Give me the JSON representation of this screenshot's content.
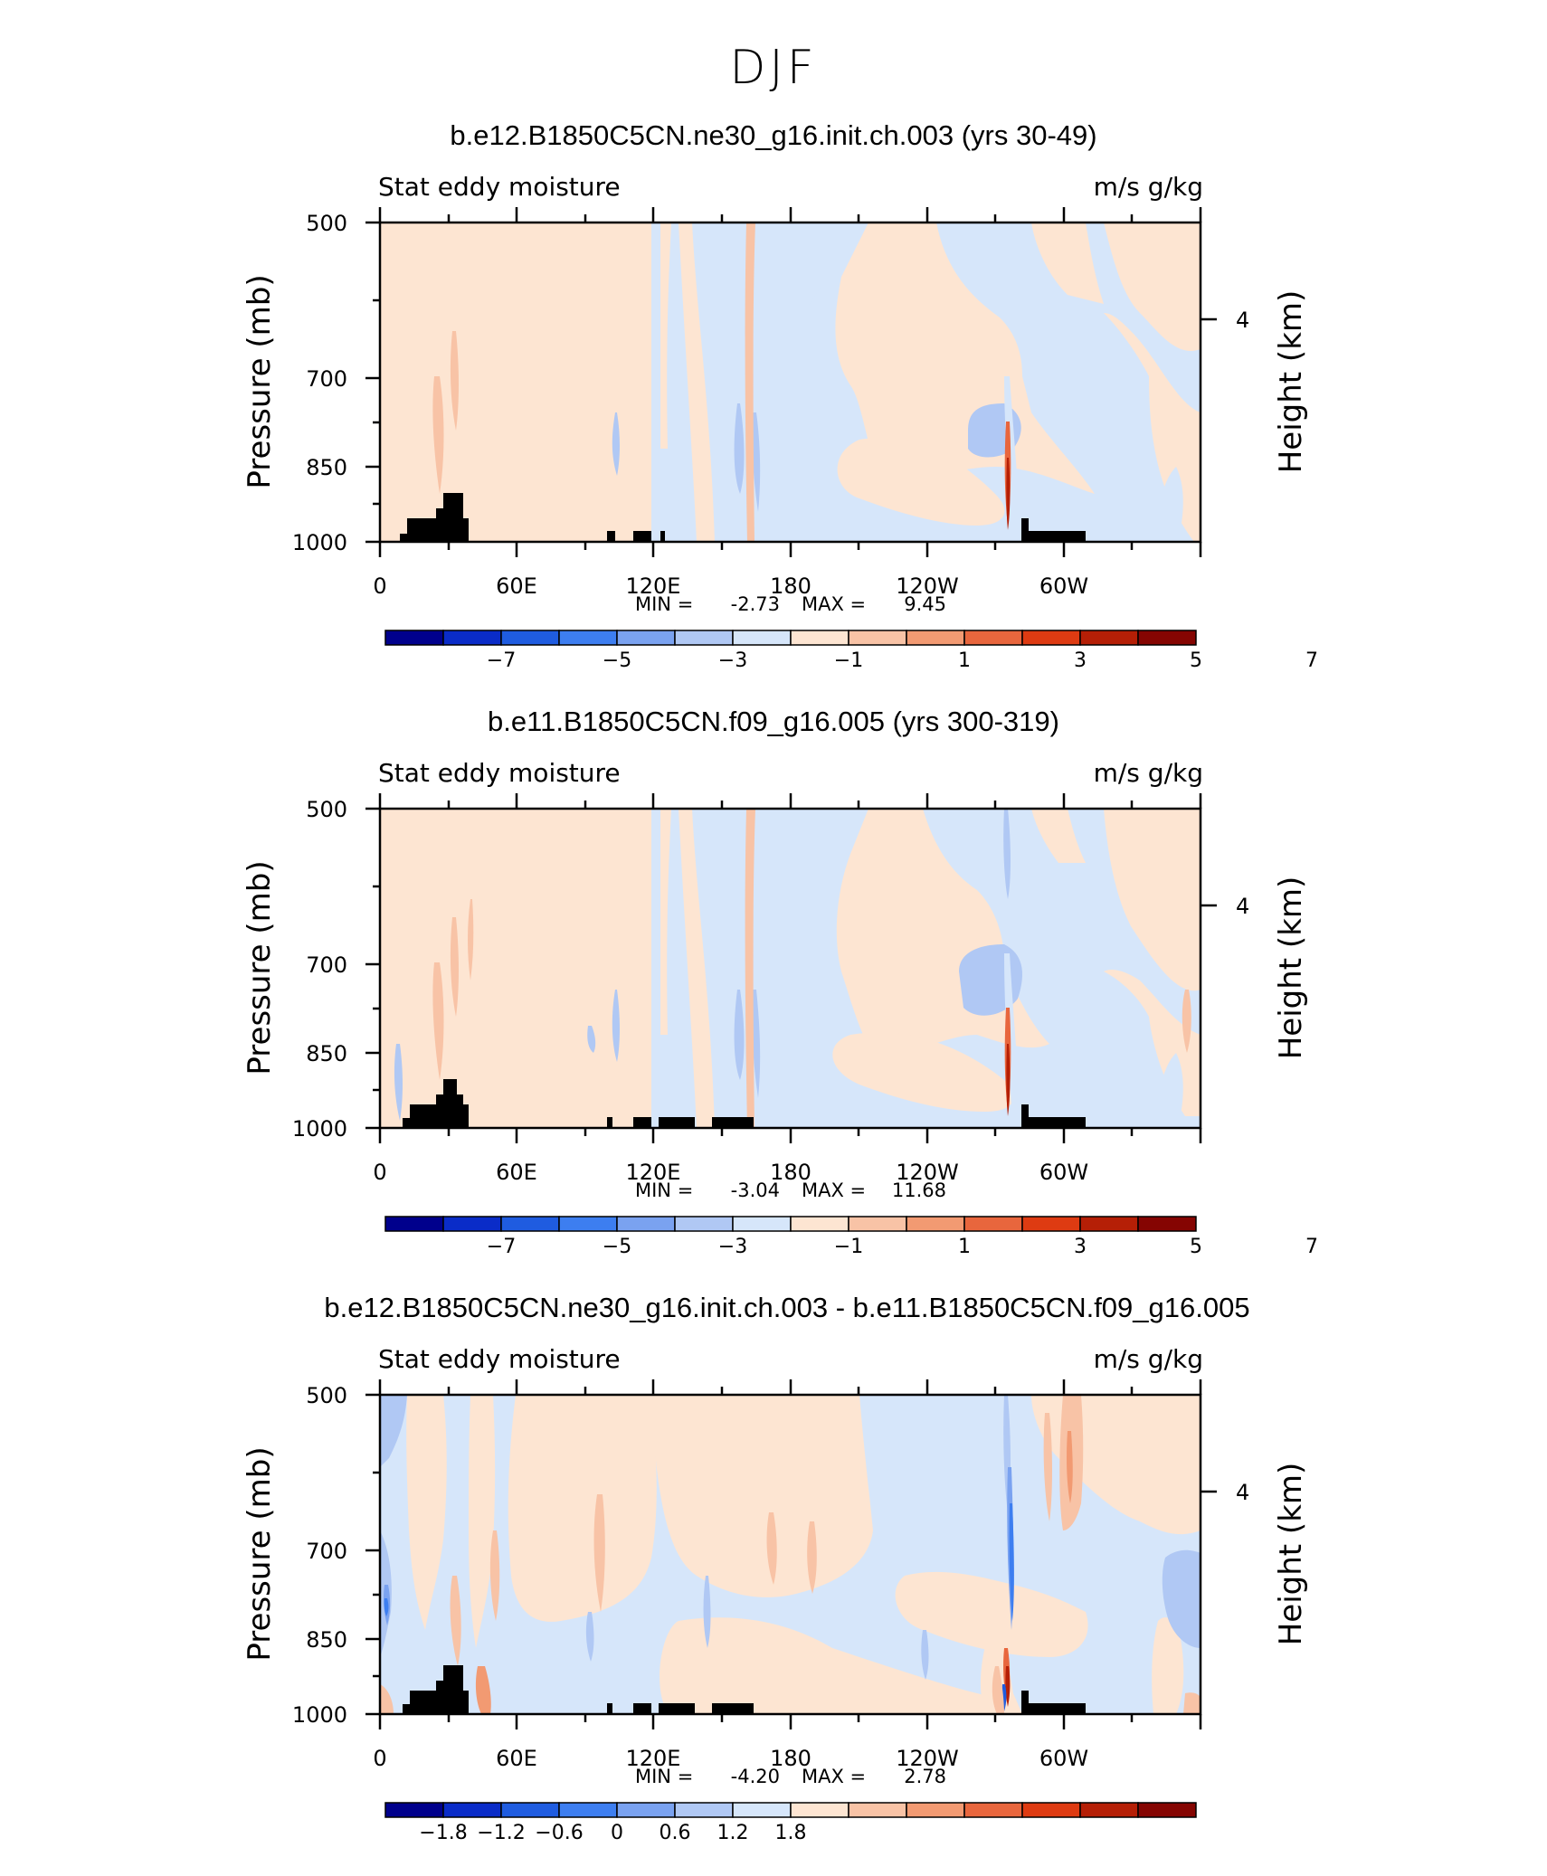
{
  "figure_title": "DJF",
  "chart_data": [
    {
      "type": "heatmap",
      "title": "b.e12.B1850C5CN.ne30_g16.init.ch.003 (yrs 30-49)",
      "left_label": "Stat eddy moisture",
      "right_label": "m/s g/kg",
      "ylabel": "Pressure (mb)",
      "y2label": "Height (km)",
      "x_ticks": [
        "0",
        "60E",
        "120E",
        "180",
        "120W",
        "60W"
      ],
      "y_ticks": [
        "500",
        "700",
        "850",
        "1000"
      ],
      "y2_ticks": [
        "4"
      ],
      "stats": {
        "min_label": "MIN =",
        "min_value": "-2.73",
        "max_label": "MAX =",
        "max_value": "9.45"
      },
      "colorbar_labels": [
        "-7",
        "-5",
        "-3",
        "-1",
        "1",
        "3",
        "5",
        "7"
      ],
      "topography": "profile1"
    },
    {
      "type": "heatmap",
      "title": "b.e11.B1850C5CN.f09_g16.005 (yrs 300-319)",
      "left_label": "Stat eddy moisture",
      "right_label": "m/s g/kg",
      "ylabel": "Pressure (mb)",
      "y2label": "Height (km)",
      "x_ticks": [
        "0",
        "60E",
        "120E",
        "180",
        "120W",
        "60W"
      ],
      "y_ticks": [
        "500",
        "700",
        "850",
        "1000"
      ],
      "y2_ticks": [
        "4"
      ],
      "stats": {
        "min_label": "MIN =",
        "min_value": "-3.04",
        "max_label": "MAX =",
        "max_value": "11.68"
      },
      "colorbar_labels": [
        "-7",
        "-5",
        "-3",
        "-1",
        "1",
        "3",
        "5",
        "7"
      ],
      "topography": "profile2"
    },
    {
      "type": "heatmap",
      "title": "b.e12.B1850C5CN.ne30_g16.init.ch.003 - b.e11.B1850C5CN.f09_g16.005",
      "left_label": "Stat eddy moisture",
      "right_label": "m/s g/kg",
      "ylabel": "Pressure (mb)",
      "y2label": "Height (km)",
      "x_ticks": [
        "0",
        "60E",
        "120E",
        "180",
        "120W",
        "60W"
      ],
      "y_ticks": [
        "500",
        "700",
        "850",
        "1000"
      ],
      "y2_ticks": [
        "4"
      ],
      "stats": {
        "min_label": "MIN =",
        "min_value": "-4.20",
        "max_label": "MAX =",
        "max_value": "2.78"
      },
      "colorbar_labels": [
        "-1.8",
        "-1.2",
        "-0.6",
        "0",
        "0.6",
        "1.2",
        "1.8"
      ],
      "topography": "profile2"
    }
  ],
  "colors": {
    "colorbar": [
      "#00008c",
      "#0a2cc8",
      "#1f5ce0",
      "#3d7ef0",
      "#7aa2f0",
      "#b0c8f4",
      "#d6e6fa",
      "#fde5d2",
      "#f8c3a6",
      "#f29a72",
      "#e8663d",
      "#de3b12",
      "#b51f06",
      "#850502"
    ],
    "light_blue": "#d6e6fa",
    "light_orange": "#fde5d2",
    "mid_blue": "#b0c8f4",
    "mid_orange": "#f8c3a6",
    "topography": "#000000"
  }
}
